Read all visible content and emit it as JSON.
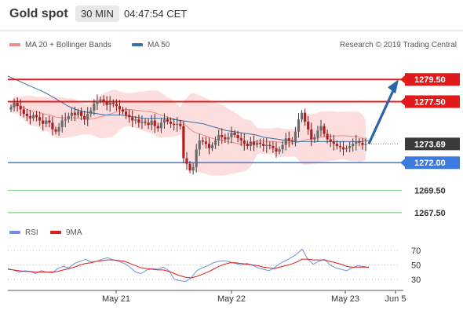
{
  "header": {
    "title": "Gold spot",
    "timeframe": "30 MIN",
    "time": "04:47:54 CET"
  },
  "legend": {
    "ma20_label": "MA 20 + Bollinger Bands",
    "ma50_label": "MA 50",
    "copyright": "Research © 2019 Trading Central",
    "rsi_label": "RSI",
    "ma9_label": "9MA"
  },
  "colors": {
    "resistance": "#e11b1b",
    "support": "#3b7be0",
    "support_green": "#8ed08e",
    "ma50": "#3a6ea5",
    "bollinger": "#fbd3d3",
    "ma20": "#f08a8a",
    "arrow": "#2d63a8",
    "rsi": "#6f8fe0",
    "ma9": "#e11b1b",
    "last_price_bg": "#3a3a3a"
  },
  "chart_data": [
    {
      "type": "candlestick",
      "title": "Gold spot",
      "x_ticks": [
        "May 21",
        "May 22",
        "May 23",
        "Jun 5"
      ],
      "ylim": [
        1266.5,
        1281
      ],
      "levels": [
        {
          "value": 1279.5,
          "label": "1279.50",
          "kind": "resistance-tag"
        },
        {
          "value": 1277.5,
          "label": "1277.50",
          "kind": "resistance-tag"
        },
        {
          "value": 1273.69,
          "label": "1273.69",
          "kind": "last-price"
        },
        {
          "value": 1272.0,
          "label": "1272.00",
          "kind": "support-tag"
        },
        {
          "value": 1269.5,
          "label": "1269.50",
          "kind": "support"
        },
        {
          "value": 1267.5,
          "label": "1267.50",
          "kind": "support"
        }
      ],
      "close": [
        1277.0,
        1277.4,
        1277.1,
        1276.8,
        1276.4,
        1276.2,
        1276.0,
        1276.3,
        1276.1,
        1275.8,
        1275.5,
        1275.8,
        1275.6,
        1275.0,
        1274.8,
        1275.2,
        1275.8,
        1275.9,
        1276.2,
        1276.5,
        1276.3,
        1276.6,
        1276.2,
        1275.9,
        1276.4,
        1276.7,
        1277.3,
        1277.6,
        1277.7,
        1277.5,
        1277.2,
        1277.4,
        1277.3,
        1277.1,
        1276.8,
        1276.6,
        1276.3,
        1276.1,
        1275.8,
        1275.9,
        1275.6,
        1275.7,
        1275.6,
        1275.4,
        1275.8,
        1275.3,
        1275.1,
        1275.6,
        1275.9,
        1275.7,
        1275.5,
        1275.4,
        1275.5,
        1275.3,
        1272.4,
        1271.9,
        1271.3,
        1271.6,
        1273.2,
        1274.0,
        1273.9,
        1273.7,
        1273.3,
        1273.6,
        1274.0,
        1274.5,
        1274.3,
        1274.1,
        1274.3,
        1274.7,
        1274.5,
        1274.2,
        1274.0,
        1273.7,
        1273.5,
        1273.9,
        1273.6,
        1273.8,
        1273.7,
        1273.5,
        1273.6,
        1273.5,
        1273.3,
        1273.0,
        1273.2,
        1273.6,
        1274.2,
        1274.0,
        1273.9,
        1274.8,
        1275.9,
        1276.5,
        1275.7,
        1275.0,
        1274.1,
        1274.3,
        1274.9,
        1275.3,
        1274.6,
        1274.1,
        1273.9,
        1273.7,
        1273.5,
        1273.4,
        1273.2,
        1273.3,
        1273.5,
        1273.7,
        1273.9,
        1273.8,
        1273.6,
        1273.7
      ],
      "ma50": [
        1279.8,
        1279.5,
        1279.2,
        1278.9,
        1278.6,
        1278.3,
        1277.9,
        1277.5,
        1277.1,
        1276.8,
        1276.6,
        1276.5,
        1276.4,
        1276.3,
        1276.3,
        1276.3,
        1276.2,
        1276.1,
        1276.0,
        1276.0,
        1276.0,
        1276.0,
        1275.9,
        1275.8,
        1275.7,
        1275.6,
        1275.5,
        1275.3,
        1275.1,
        1274.9,
        1274.8,
        1274.7,
        1274.6,
        1274.5,
        1274.3,
        1274.2,
        1274.1,
        1274.0,
        1273.9,
        1273.9,
        1273.9,
        1273.9,
        1273.9,
        1273.9,
        1273.9,
        1273.9,
        1273.9,
        1273.9,
        1274.0
      ],
      "rsi": {
        "ylim": [
          20,
          80
        ],
        "ticks": [
          30,
          50,
          70
        ],
        "rsi_values": [
          45,
          43,
          40,
          42,
          41,
          38,
          42,
          40,
          39,
          45,
          48,
          46,
          52,
          55,
          58,
          54,
          55,
          58,
          60,
          57,
          55,
          52,
          47,
          40,
          38,
          43,
          45,
          44,
          47,
          42,
          30,
          28,
          27,
          32,
          42,
          46,
          49,
          53,
          55,
          56,
          54,
          52,
          50,
          52,
          50,
          46,
          44,
          42,
          46,
          52,
          56,
          60,
          65,
          72,
          58,
          51,
          55,
          58,
          50,
          46,
          44,
          42,
          46,
          49,
          48,
          46
        ],
        "ma9_values": [
          44,
          43,
          42,
          41,
          41,
          40,
          40,
          40,
          40,
          41,
          43,
          45,
          47,
          50,
          52,
          53,
          55,
          56,
          57,
          57,
          56,
          55,
          52,
          49,
          46,
          45,
          44,
          43,
          43,
          41,
          38,
          35,
          33,
          32,
          34,
          37,
          40,
          44,
          48,
          51,
          53,
          53,
          52,
          51,
          50,
          49,
          47,
          46,
          45,
          47,
          49,
          51,
          54,
          58,
          58,
          57,
          57,
          57,
          55,
          53,
          51,
          48,
          47,
          47,
          47,
          47
        ]
      }
    }
  ]
}
